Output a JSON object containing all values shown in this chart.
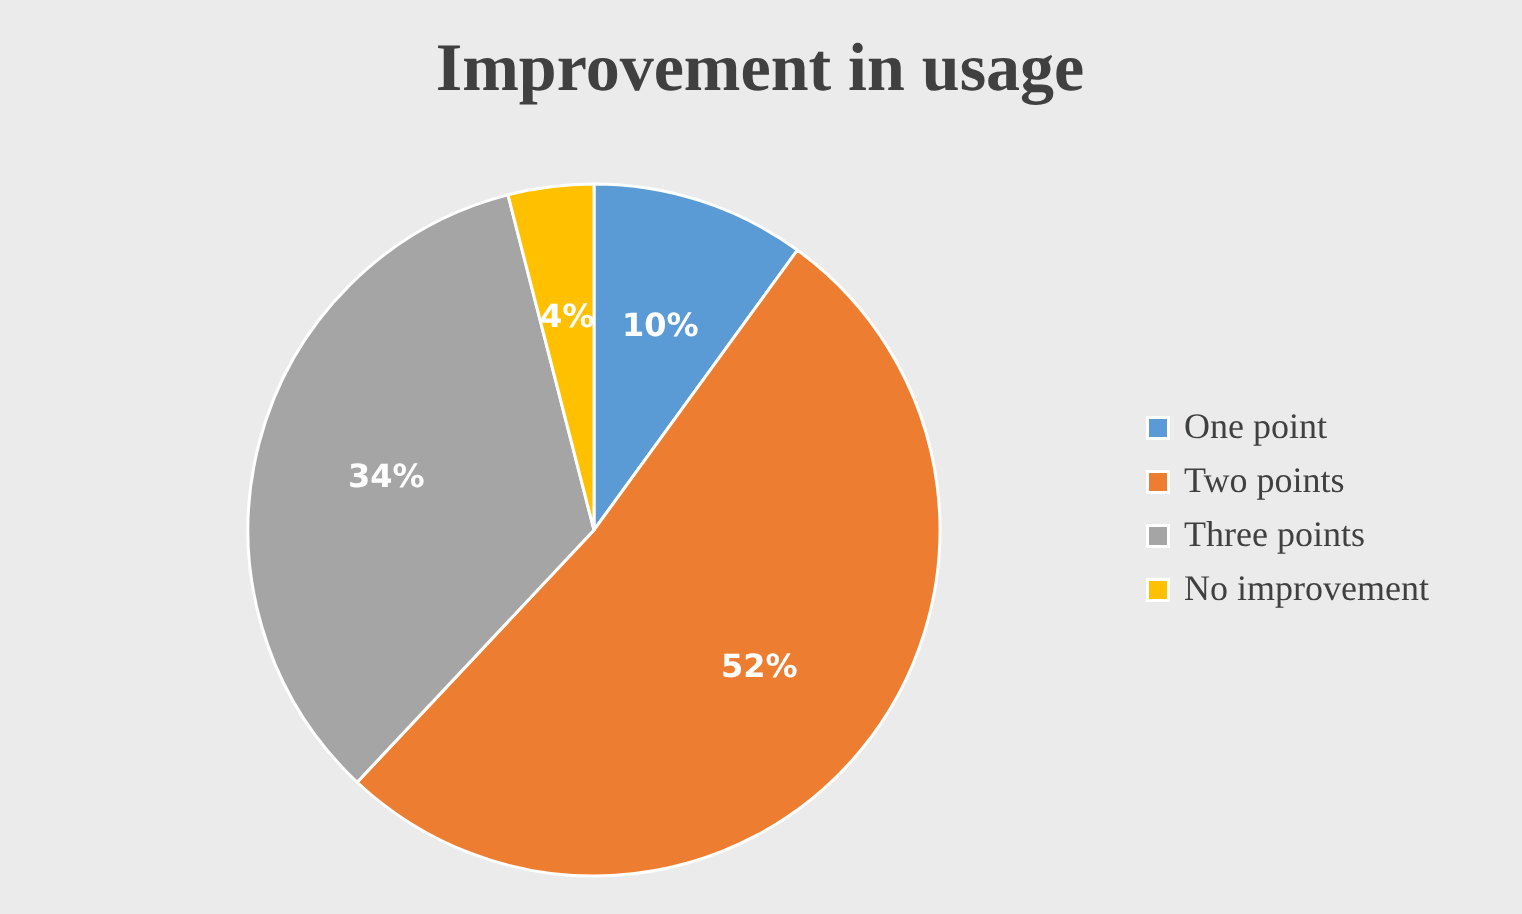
{
  "chart_data": {
    "type": "pie",
    "title": "Improvement in usage",
    "categories": [
      "One point",
      "Two points",
      "Three points",
      "No improvement"
    ],
    "values": [
      10,
      52,
      34,
      4
    ],
    "colors": [
      "#5b9bd5",
      "#ed7d31",
      "#a5a5a5",
      "#ffc000"
    ],
    "value_labels": [
      "10%",
      "52%",
      "34%",
      "4%"
    ],
    "legend": "right"
  }
}
